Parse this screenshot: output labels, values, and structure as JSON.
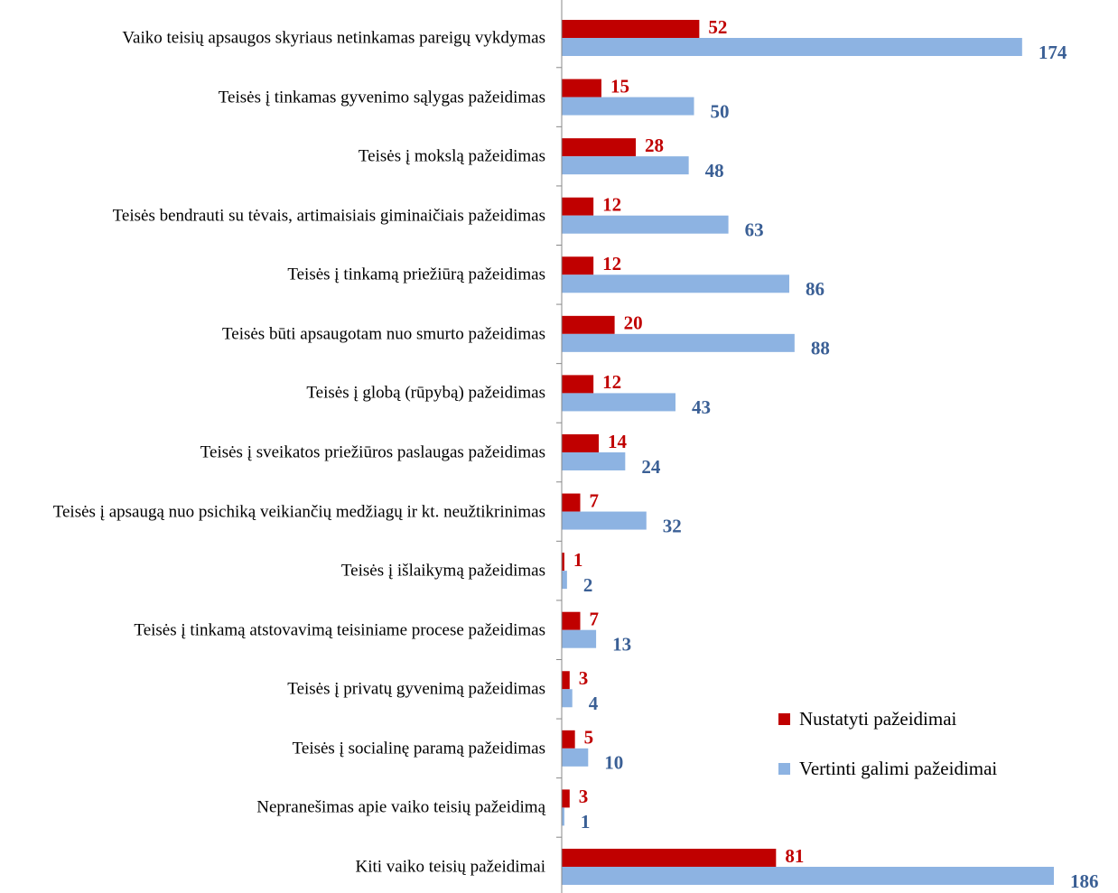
{
  "chart_data": {
    "type": "barh",
    "categories": [
      "Vaiko teisių apsaugos skyriaus netinkamas pareigų vykdymas",
      "Teisės į tinkamas gyvenimo sąlygas pažeidimas",
      "Teisės į mokslą pažeidimas",
      "Teisės bendrauti su tėvais, artimaisiais giminaičiais pažeidimas",
      "Teisės į tinkamą priežiūrą pažeidimas",
      "Teisės būti apsaugotam nuo smurto pažeidimas",
      "Teisės į globą (rūpybą) pažeidimas",
      "Teisės į sveikatos priežiūros paslaugas pažeidimas",
      "Teisės į apsaugą nuo psichiką veikiančių medžiagų ir kt. neužtikrinimas",
      "Teisės į išlaikymą pažeidimas",
      "Teisės į tinkamą atstovavimą teisiniame procese pažeidimas",
      "Teisės į privatų gyvenimą pažeidimas",
      "Teisės į socialinę paramą pažeidimas",
      "Nepranešimas apie vaiko teisių pažeidimą",
      "Kiti vaiko teisių pažeidimai"
    ],
    "series": [
      {
        "name": "Nustatyti pažeidimai",
        "color": "#c00000",
        "label_color": "#c00000",
        "values": [
          52,
          15,
          28,
          12,
          12,
          20,
          12,
          14,
          7,
          1,
          7,
          3,
          5,
          3,
          81
        ]
      },
      {
        "name": "Vertinti galimi pažeidimai",
        "color": "#8db3e2",
        "label_color": "#3a5f95",
        "values": [
          174,
          50,
          48,
          63,
          86,
          88,
          43,
          24,
          32,
          2,
          13,
          4,
          10,
          1,
          186
        ]
      }
    ],
    "legend": "right"
  }
}
